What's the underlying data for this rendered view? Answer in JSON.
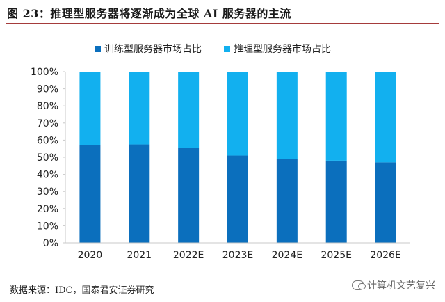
{
  "figure": {
    "title": "图 23：推理型服务器将逐渐成为全球 AI 服务器的主流",
    "source": "数据来源：IDC，国泰君安证券研究",
    "watermark": "计算机文艺复兴"
  },
  "colors": {
    "training": "#0b6fbd",
    "inference": "#12b0ef",
    "axis": "#c8c8c8"
  },
  "chart_data": {
    "type": "bar",
    "stacked": true,
    "categories": [
      "2020",
      "2021",
      "2022E",
      "2023E",
      "2024E",
      "2025E",
      "2026E"
    ],
    "series": [
      {
        "name": "训练型服务器市场占比",
        "values": [
          57.3,
          57.5,
          55.3,
          51.0,
          49.0,
          48.0,
          47.0
        ]
      },
      {
        "name": "推理型服务器市场占比",
        "values": [
          42.7,
          42.5,
          44.7,
          49.0,
          51.0,
          52.0,
          53.0
        ]
      }
    ],
    "ylim": [
      0,
      100
    ],
    "yticks": [
      "0%",
      "10%",
      "20%",
      "30%",
      "40%",
      "50%",
      "60%",
      "70%",
      "80%",
      "90%",
      "100%"
    ],
    "legend_position": "top",
    "grid": false
  }
}
